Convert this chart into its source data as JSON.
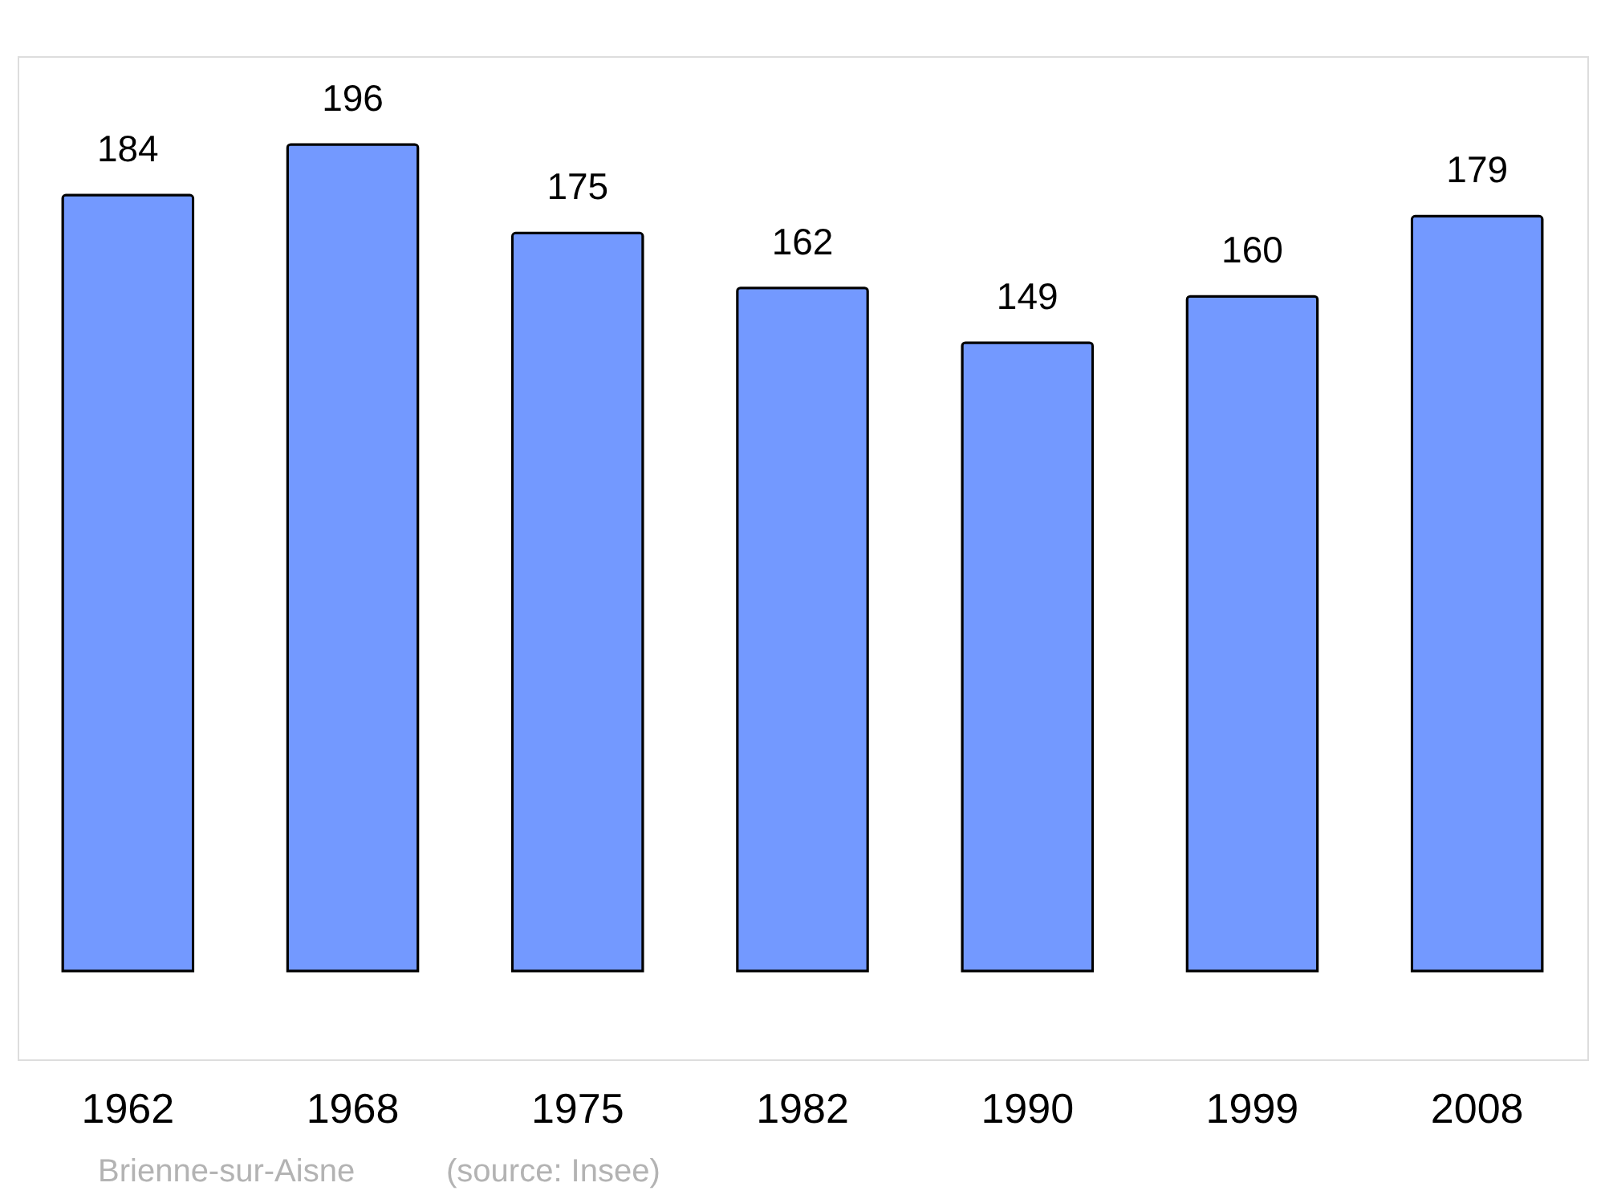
{
  "chart_data": {
    "type": "bar",
    "categories": [
      "1962",
      "1968",
      "1975",
      "1982",
      "1990",
      "1999",
      "2008"
    ],
    "values": [
      184,
      196,
      175,
      162,
      149,
      160,
      179
    ],
    "color": "#7399ff",
    "data_labels": true,
    "annotations": [
      "Brienne-sur-Aisne",
      "(source: Insee)"
    ]
  }
}
